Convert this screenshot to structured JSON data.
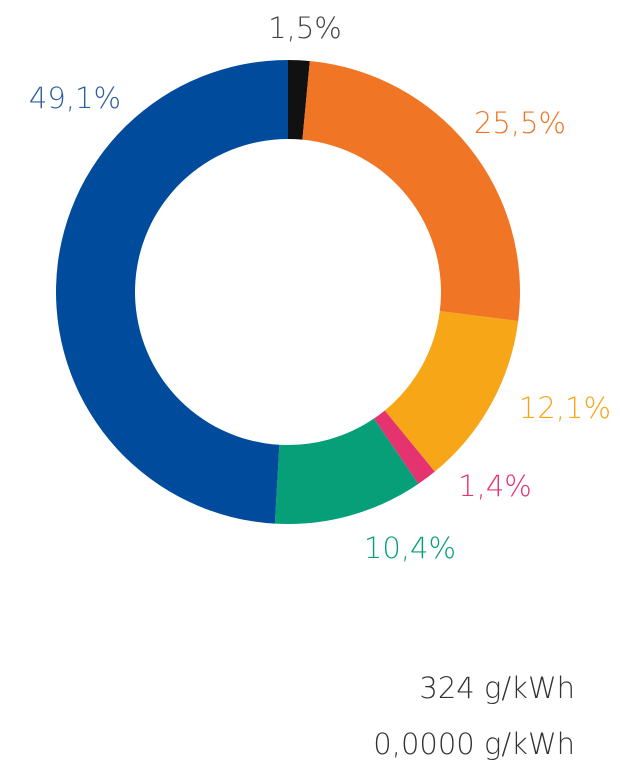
{
  "chart_data": {
    "type": "donut",
    "categories": [
      null,
      null,
      null,
      null,
      null,
      null
    ],
    "values": [
      1.5,
      25.5,
      12.1,
      1.4,
      10.4,
      49.1
    ],
    "value_labels": [
      "1,5%",
      "25,5%",
      "12,1%",
      "1,4%",
      "10,4%",
      "49,1%"
    ],
    "colors": [
      "#111111",
      "#f07524",
      "#f6a616",
      "#e5336f",
      "#079f78",
      "#004b9b"
    ],
    "label_colors": [
      "#444444",
      "#f07524",
      "#f6a616",
      "#e5336f",
      "#079f78",
      "#2f5f9e"
    ]
  },
  "footer": {
    "lines": [
      "324 g/kWh",
      "0,0000 g/kWh"
    ]
  }
}
